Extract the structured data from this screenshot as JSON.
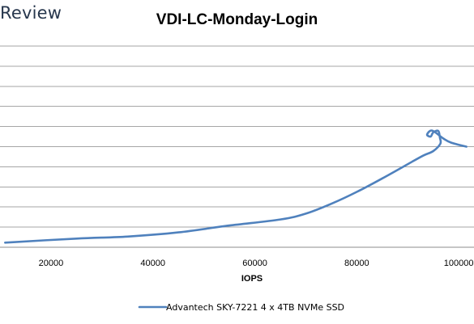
{
  "brand": {
    "text": "Review"
  },
  "chart_data": {
    "type": "line",
    "title": "VDI-LC-Monday-Login",
    "xlabel": "IOPS",
    "ylabel": "",
    "xlim": [
      10000,
      103000
    ],
    "x_ticks": [
      20000,
      40000,
      60000,
      80000,
      100000
    ],
    "x_tick_labels": [
      "20000",
      "40000",
      "60000",
      "80000",
      "100000"
    ],
    "y_gridlines": 10,
    "y_tick_labels_visible": false,
    "grid": "horizontal",
    "legend_position": "bottom",
    "series": [
      {
        "name": "Advantech SKY-7221 4 x 4TB NVMe SSD",
        "color": "#4f81bd",
        "points": [
          [
            11000,
            0.23
          ],
          [
            25000,
            0.43
          ],
          [
            35000,
            0.53
          ],
          [
            45000,
            0.74
          ],
          [
            55000,
            1.08
          ],
          [
            65000,
            1.38
          ],
          [
            70000,
            1.67
          ],
          [
            75000,
            2.16
          ],
          [
            80000,
            2.75
          ],
          [
            85000,
            3.42
          ],
          [
            90000,
            4.13
          ],
          [
            93000,
            4.55
          ],
          [
            95000,
            4.78
          ],
          [
            96400,
            5.15
          ],
          [
            96300,
            5.45
          ],
          [
            96000,
            5.78
          ],
          [
            95000,
            5.71
          ],
          [
            94500,
            5.5
          ],
          [
            93800,
            5.6
          ],
          [
            94800,
            5.8
          ],
          [
            97000,
            5.4
          ],
          [
            98500,
            5.2
          ],
          [
            101500,
            5.0
          ]
        ]
      }
    ]
  }
}
